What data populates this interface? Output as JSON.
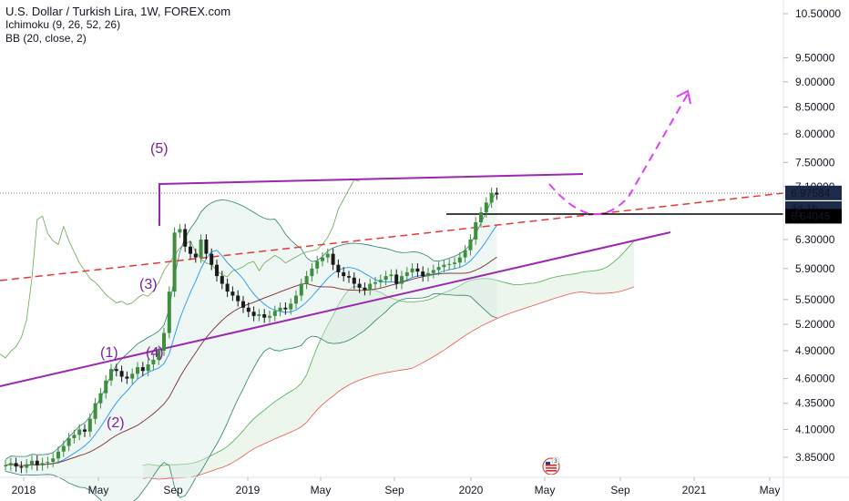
{
  "legend": {
    "title": "U.S. Dollar / Turkish Lira, 1W, FOREX.com",
    "ichimoku": "Ichimoku (9, 26, 52, 26)",
    "bb": "BB (20, close, 2)"
  },
  "colors": {
    "candle_up": "#3e8e3e",
    "candle_down": "#1a1a1a",
    "ichimoku_lagging": "#6aa84f",
    "tenkan": "#2196f3",
    "kijun": "#7b2c2c",
    "span_a": "#4caf50",
    "span_b": "#ef5350",
    "bb_band": "#2e7d6f",
    "trend_purple": "#9c27b0",
    "trend_red": "#e53935",
    "projection": "#e040fb",
    "price_tag": "#1e2a4a"
  },
  "chart_data": {
    "type": "line",
    "symbol": "USDTRY",
    "timeframe": "1W",
    "y_scale": "log",
    "ylim": [
      3.7,
      10.6
    ],
    "y_ticks": [
      "10.50000",
      "9.50000",
      "9.00000",
      "8.50000",
      "8.00000",
      "7.50000",
      "7.10000",
      "6.30000",
      "5.90000",
      "5.50000",
      "5.20000",
      "4.90000",
      "4.60000",
      "4.35000",
      "4.10000",
      "3.85000"
    ],
    "x_ticks": [
      "2018",
      "May",
      "Sep",
      "2019",
      "May",
      "Sep",
      "2020",
      "May",
      "Sep",
      "2021",
      "May"
    ],
    "price_tags": {
      "last": "6.97584",
      "countdown": "4d 1h",
      "level": "6.64045",
      "partial_level": "6"
    },
    "wave_labels": [
      "(5)",
      "(3)",
      "(1)",
      "(4)",
      "(2)"
    ],
    "badge_count": "3",
    "weekly_close": [
      3.78,
      3.8,
      3.77,
      3.76,
      3.79,
      3.82,
      3.78,
      3.8,
      3.81,
      3.84,
      3.9,
      3.95,
      4.02,
      4.05,
      4.1,
      4.08,
      4.2,
      4.35,
      4.45,
      4.58,
      4.7,
      4.68,
      4.62,
      4.6,
      4.65,
      4.72,
      4.68,
      4.75,
      4.8,
      4.9,
      5.1,
      5.6,
      6.4,
      6.45,
      6.2,
      6.1,
      6.05,
      6.3,
      6.1,
      5.95,
      5.8,
      5.7,
      5.6,
      5.55,
      5.48,
      5.4,
      5.35,
      5.3,
      5.32,
      5.28,
      5.3,
      5.36,
      5.4,
      5.38,
      5.45,
      5.55,
      5.7,
      5.8,
      5.9,
      6.0,
      6.05,
      6.1,
      5.95,
      5.85,
      5.8,
      5.78,
      5.7,
      5.65,
      5.62,
      5.7,
      5.72,
      5.75,
      5.8,
      5.82,
      5.7,
      5.8,
      5.85,
      5.9,
      5.86,
      5.8,
      5.84,
      5.88,
      5.92,
      5.95,
      5.96,
      5.98,
      6.05,
      6.15,
      6.3,
      6.55,
      6.7,
      6.85,
      7.0,
      6.97584
    ],
    "projection": [
      [
        6.97584
      ],
      [
        6.7
      ],
      [
        6.64045
      ],
      [
        6.72
      ],
      [
        7.1
      ],
      [
        8.6
      ],
      [
        9.1
      ]
    ]
  }
}
